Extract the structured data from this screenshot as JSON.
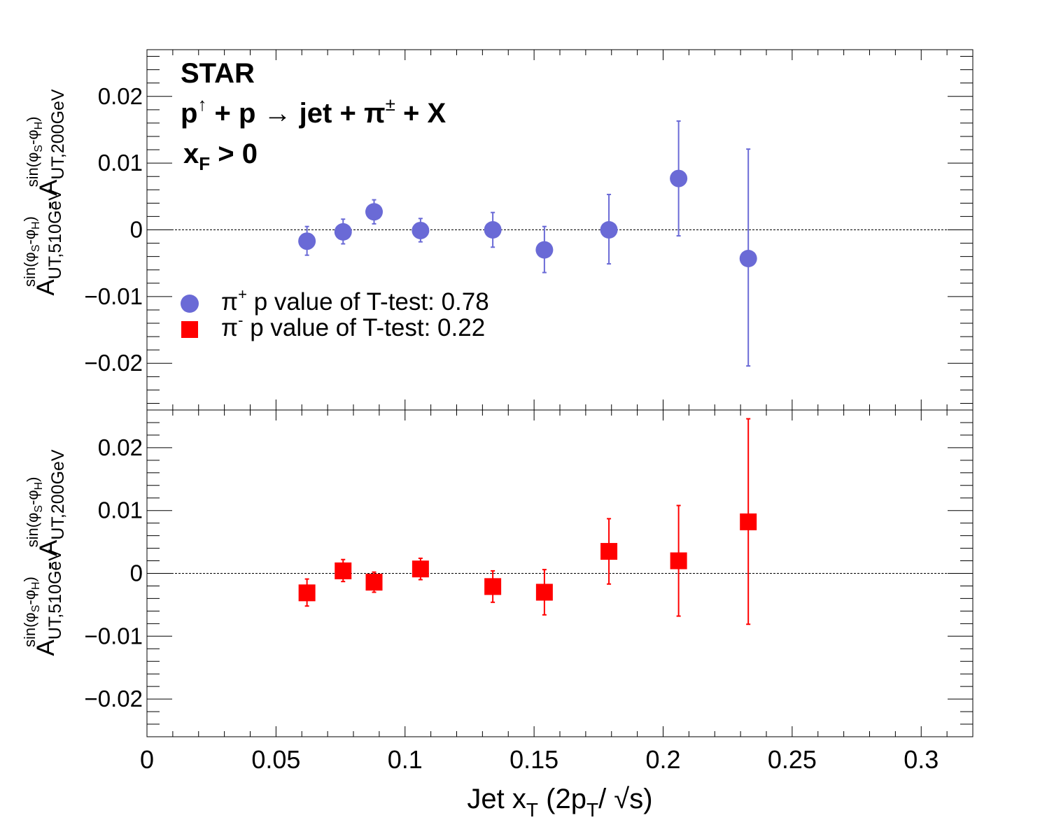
{
  "chart_data": {
    "type": "scatter",
    "xlim": [
      0,
      0.32
    ],
    "x_ticks": [
      0,
      0.05,
      0.1,
      0.15,
      0.2,
      0.25,
      0.3
    ],
    "x_tick_labels": [
      "0",
      "0.05",
      "0.1",
      "0.15",
      "0.2",
      "0.25",
      "0.3"
    ],
    "xlabel": "Jet x_T (2p_T/√s)",
    "reference_line_y": 0,
    "annotations": {
      "experiment": "STAR",
      "reaction": "p↑ + p → jet + π± + X",
      "cut": "x_F > 0"
    },
    "legend": [
      {
        "label": "π+ p value of T-test: 0.78",
        "color": "#6a6ad6",
        "marker": "circle"
      },
      {
        "label": "π- p value of T-test: 0.22",
        "color": "#ff0000",
        "marker": "square"
      }
    ],
    "panels": [
      {
        "ylabel": "A_UT,510GeV^sin(φS-φH) - A_UT,200GeV^sin(φS-φH)",
        "ylim": [
          -0.027,
          0.027
        ],
        "y_ticks": [
          -0.02,
          -0.01,
          0,
          0.01,
          0.02
        ],
        "y_tick_labels": [
          "−0.02",
          "−0.01",
          "0",
          "0.01",
          "0.02"
        ],
        "series": [
          {
            "marker": "circle",
            "color": "#6a6ad6",
            "x": [
              0.062,
              0.076,
              0.088,
              0.106,
              0.134,
              0.154,
              0.179,
              0.206,
              0.233
            ],
            "y": [
              -0.0017,
              -0.0003,
              0.0027,
              -0.0001,
              0.0,
              -0.003,
              0.0,
              0.0077,
              -0.0043
            ],
            "yerr_low": [
              -0.0038,
              -0.0021,
              0.0009,
              -0.0018,
              -0.0026,
              -0.0064,
              -0.0051,
              -0.0009,
              -0.0204
            ],
            "yerr_high": [
              0.0005,
              0.0016,
              0.0045,
              0.0017,
              0.0026,
              0.0005,
              0.0053,
              0.0163,
              0.0121
            ]
          }
        ]
      },
      {
        "ylabel": "A_UT,510GeV^sin(φS-φH) - A_UT,200GeV^sin(φS-φH)",
        "ylim": [
          -0.026,
          0.026
        ],
        "y_ticks": [
          -0.02,
          -0.01,
          0,
          0.01,
          0.02
        ],
        "y_tick_labels": [
          "−0.02",
          "−0.01",
          "0",
          "0.01",
          "0.02"
        ],
        "series": [
          {
            "marker": "square",
            "color": "#ff0000",
            "x": [
              0.062,
              0.076,
              0.088,
              0.106,
              0.134,
              0.154,
              0.179,
              0.206,
              0.233
            ],
            "y": [
              -0.0031,
              0.0004,
              -0.0014,
              0.0007,
              -0.0021,
              -0.003,
              0.0035,
              0.002,
              0.0082
            ],
            "yerr_low": [
              -0.0052,
              -0.0013,
              -0.003,
              -0.001,
              -0.0046,
              -0.0066,
              -0.0017,
              -0.0068,
              -0.0081
            ],
            "yerr_high": [
              -0.0009,
              0.0022,
              0.0002,
              0.0024,
              0.0004,
              0.0006,
              0.0087,
              0.0108,
              0.0246
            ]
          }
        ]
      }
    ]
  }
}
